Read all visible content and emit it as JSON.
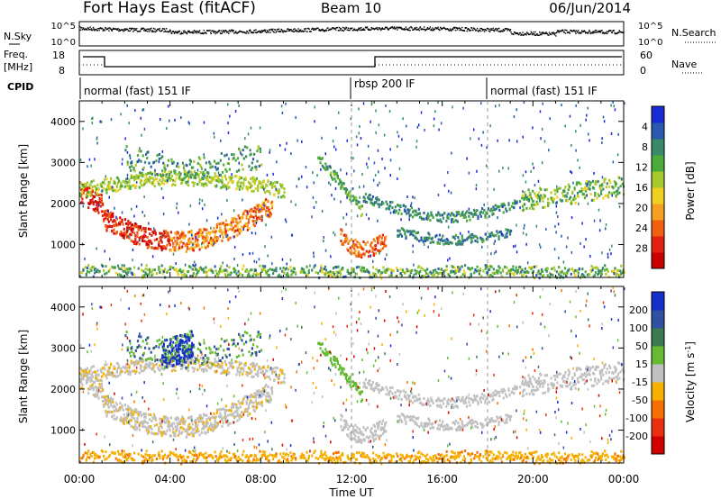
{
  "header": {
    "title": "Fort Hays East (fitACF)",
    "beam": "Beam 10",
    "date": "06/Jun/2014"
  },
  "noise_panel": {
    "left_label": "N.Sky",
    "right_label": "N.Search",
    "left_ticks": [
      "10^5",
      "10^0"
    ],
    "right_ticks": [
      "10^5",
      "10^0"
    ]
  },
  "freq_panel": {
    "left_label_1": "Freq.",
    "left_label_2": "[MHz]",
    "left_ticks": [
      "18",
      "8"
    ],
    "right_label": "Nave",
    "right_ticks": [
      "60",
      "0"
    ]
  },
  "cpid": {
    "label": "CPID",
    "segments": [
      {
        "label": "normal (fast) 151 IF",
        "start_hour": 0
      },
      {
        "label": "rbsp 200 IF",
        "start_hour": 12
      },
      {
        "label": "normal (fast) 151 IF",
        "start_hour": 18
      }
    ]
  },
  "chart_data": [
    {
      "type": "heatmap",
      "panel": "power",
      "ylabel": "Slant Range [km]",
      "yticks": [
        1000,
        2000,
        3000,
        4000
      ],
      "ylim": [
        200,
        4500
      ],
      "xlim_hours": [
        0,
        24
      ],
      "colorbar": {
        "label": "Power [dB]",
        "ticks": [
          "4",
          "8",
          "12",
          "16",
          "20",
          "24",
          "28"
        ],
        "colors": [
          "#1a2bd6",
          "#2a5ab0",
          "#3a8a6a",
          "#4aaa3a",
          "#a8c830",
          "#f0d020",
          "#f5a020",
          "#f06010",
          "#e02010",
          "#c80000"
        ]
      }
    },
    {
      "type": "heatmap",
      "panel": "velocity",
      "ylabel": "Slant Range [km]",
      "yticks": [
        1000,
        2000,
        3000,
        4000
      ],
      "ylim": [
        200,
        4500
      ],
      "xlim_hours": [
        0,
        24
      ],
      "colorbar": {
        "label": "Velocity [m s^-1]",
        "ticks": [
          "200",
          "100",
          "50",
          "15",
          "-15",
          "-50",
          "-100",
          "-200"
        ],
        "colors": [
          "#1530c8",
          "#3050a0",
          "#3a7a50",
          "#66bb33",
          "#c0c0c0",
          "#f5b000",
          "#f57000",
          "#e83010",
          "#d00000"
        ]
      }
    }
  ],
  "xaxis": {
    "ticks": [
      "00:00",
      "04:00",
      "08:00",
      "12:00",
      "16:00",
      "20:00",
      "00:00"
    ],
    "label": "Time UT"
  }
}
